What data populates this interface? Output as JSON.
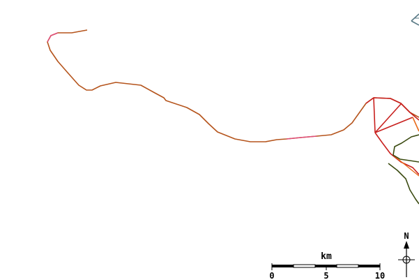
{
  "map": {
    "colors": {
      "background": "#ffffff",
      "river_main": "#b5541c",
      "river_pink": "#e0507a",
      "river_red": "#c8201e",
      "river_orange": "#e86a1a",
      "river_dark": "#3a4a10",
      "scale_dark": "#000000",
      "scale_light": "#ffffff"
    },
    "scale_bar": {
      "unit_label": "km",
      "ticks": [
        "0",
        "5",
        "10"
      ]
    },
    "north_arrow": {
      "label": "N"
    },
    "corner_icon": "compass-partial-icon"
  }
}
